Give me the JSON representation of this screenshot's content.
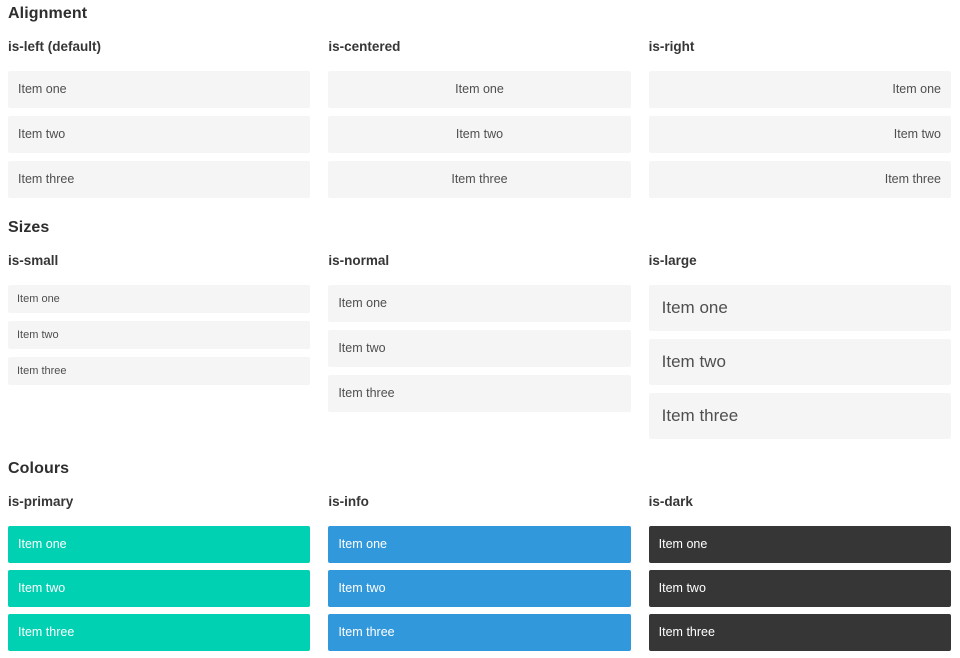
{
  "colors": {
    "page-bg": "#ffffff",
    "item-bg": "#f5f5f5",
    "item-text": "#4f4f4f",
    "heading-text": "#2e2e2e",
    "subheading-text": "#363636",
    "primary": "#00d1b2",
    "info": "#3298dc",
    "dark": "#363636",
    "colored-text": "#ffffff"
  },
  "sections": [
    {
      "title": "Alignment",
      "columns": [
        {
          "heading": "is-left (default)",
          "variant": "left",
          "items": [
            "Item one",
            "Item two",
            "Item three"
          ]
        },
        {
          "heading": "is-centered",
          "variant": "centered",
          "items": [
            "Item one",
            "Item two",
            "Item three"
          ]
        },
        {
          "heading": "is-right",
          "variant": "right",
          "items": [
            "Item one",
            "Item two",
            "Item three"
          ]
        }
      ]
    },
    {
      "title": "Sizes",
      "columns": [
        {
          "heading": "is-small",
          "variant": "small",
          "items": [
            "Item one",
            "Item two",
            "Item three"
          ]
        },
        {
          "heading": "is-normal",
          "variant": "normal",
          "items": [
            "Item one",
            "Item two",
            "Item three"
          ]
        },
        {
          "heading": "is-large",
          "variant": "large",
          "items": [
            "Item one",
            "Item two",
            "Item three"
          ]
        }
      ]
    },
    {
      "title": "Colours",
      "columns": [
        {
          "heading": "is-primary",
          "variant": "primary",
          "items": [
            "Item one",
            "Item two",
            "Item three"
          ]
        },
        {
          "heading": "is-info",
          "variant": "info",
          "items": [
            "Item one",
            "Item two",
            "Item three"
          ]
        },
        {
          "heading": "is-dark",
          "variant": "dark",
          "items": [
            "Item one",
            "Item two",
            "Item three"
          ]
        }
      ]
    }
  ]
}
